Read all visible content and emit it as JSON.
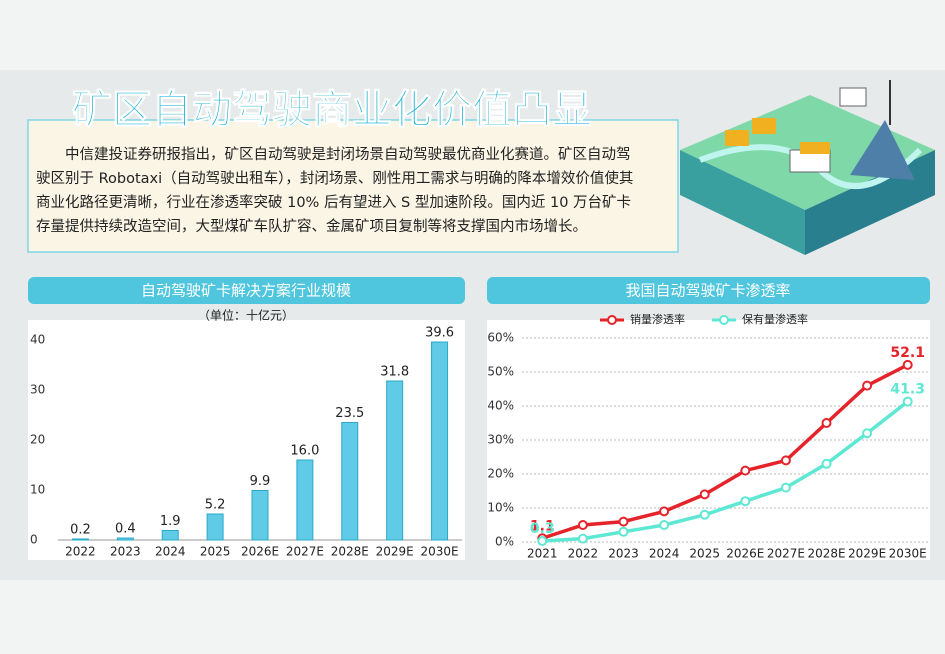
{
  "title": "矿区自动驾驶商业化价值凸显",
  "paragraph": "中信建投证券研报指出，矿区自动驾驶是封闭场景自动驾驶最优商业化赛道。矿区自动驾驶区别于 Robotaxi（自动驾驶出租车），封闭场景、刚性用工需求与明确的降本增效价值使其商业化路径更清晰，行业在渗透率突破 10% 后有望进入 S 型加速阶段。国内近 10 万台矿卡存量提供持续改造空间，大型煤矿车队扩容、金属矿项目复制等将支撑国内市场增长。",
  "chart_data": [
    {
      "type": "bar",
      "title": "自动驾驶矿卡解决方案行业规模",
      "subtitle": "（单位：十亿元）",
      "categories": [
        "2022",
        "2023",
        "2024",
        "2025",
        "2026E",
        "2027E",
        "2028E",
        "2029E",
        "2030E"
      ],
      "values": [
        0.2,
        0.4,
        1.9,
        5.2,
        9.9,
        16.0,
        23.5,
        31.8,
        39.6
      ],
      "value_labels": [
        "0.2",
        "0.4",
        "1.9",
        "5.2",
        "9.9",
        "16.0",
        "23.5",
        "31.8",
        "39.6"
      ],
      "color": "#5fcbe6",
      "ylim": [
        0,
        41
      ],
      "yticks": [
        0,
        10,
        20,
        30,
        40
      ]
    },
    {
      "type": "line",
      "title": "我国自动驾驶矿卡渗透率",
      "categories": [
        "2021",
        "2022",
        "2023",
        "2024",
        "2025",
        "2026E",
        "2027E",
        "2028E",
        "2029E",
        "2030E"
      ],
      "series": [
        {
          "name": "销量渗透率",
          "color": "#e5232a",
          "values": [
            1.1,
            5,
            6,
            9,
            14,
            21,
            24,
            35,
            46,
            52.1
          ]
        },
        {
          "name": "保有量渗透率",
          "color": "#5ee8d4",
          "values": [
            0.3,
            1,
            3,
            5,
            8,
            12,
            16,
            23,
            32,
            41.3
          ]
        }
      ],
      "data_labels": "first-last",
      "ylim": [
        0,
        60
      ],
      "yticks": [
        {
          "value": 0,
          "label": "0%"
        },
        {
          "value": 10,
          "label": "10%"
        },
        {
          "value": 20,
          "label": "20%"
        },
        {
          "value": 30,
          "label": "30%"
        },
        {
          "value": 40,
          "label": "40%"
        },
        {
          "value": 50,
          "label": "50%"
        },
        {
          "value": 60,
          "label": "60%"
        }
      ],
      "grid": true,
      "legend": "top"
    }
  ]
}
